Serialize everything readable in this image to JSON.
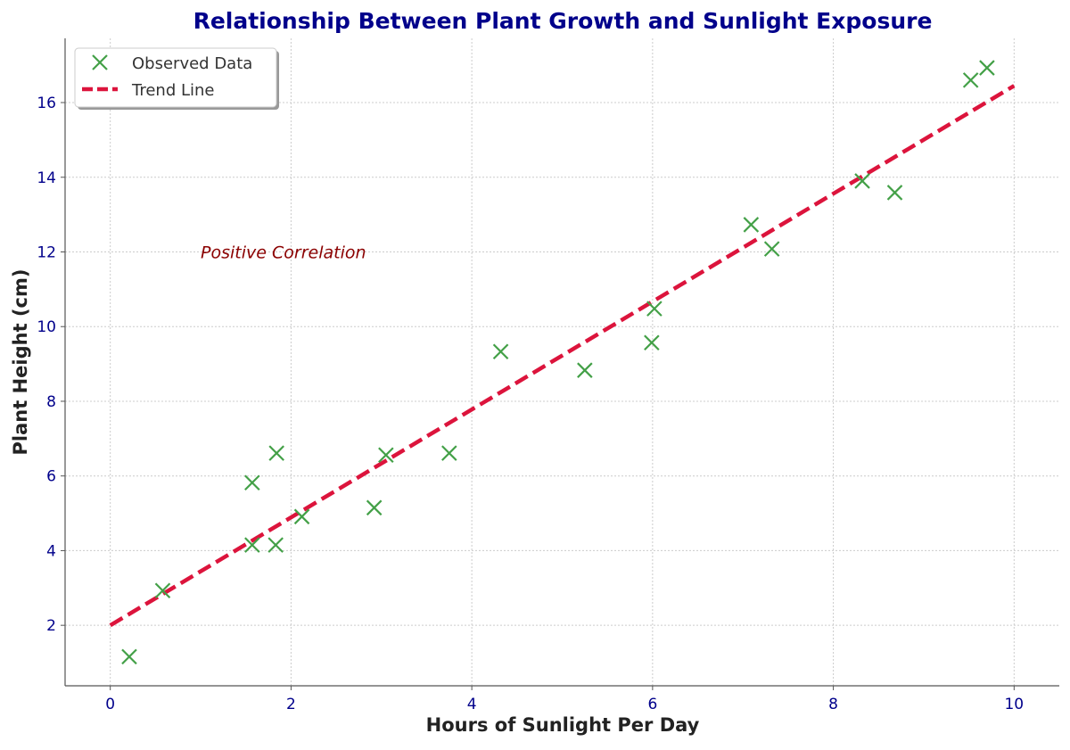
{
  "chart_data": {
    "type": "scatter",
    "title": "Relationship Between Plant Growth and Sunlight Exposure",
    "xlabel": "Hours of Sunlight Per Day",
    "ylabel": "Plant Height (cm)",
    "xlim": [
      -0.5,
      10.5
    ],
    "ylim": [
      0.38,
      17.72
    ],
    "xticks": [
      0,
      2,
      4,
      6,
      8,
      10
    ],
    "yticks": [
      2,
      4,
      6,
      8,
      10,
      12,
      14,
      16
    ],
    "grid": true,
    "legend_position": "top-left",
    "series": [
      {
        "name": "Observed Data",
        "marker": "x",
        "color": "#43a047",
        "x": [
          0.21,
          0.58,
          1.57,
          1.57,
          1.84,
          1.83,
          2.12,
          2.92,
          3.05,
          3.75,
          4.32,
          5.25,
          5.99,
          6.02,
          7.09,
          7.32,
          8.32,
          8.68,
          9.52,
          9.7
        ],
        "y": [
          1.16,
          2.93,
          5.82,
          4.15,
          6.61,
          4.15,
          4.91,
          5.15,
          6.56,
          6.61,
          9.33,
          8.83,
          9.57,
          10.48,
          12.73,
          12.08,
          13.9,
          13.59,
          16.6,
          16.93
        ]
      },
      {
        "name": "Trend Line",
        "type": "line",
        "style": "dashed",
        "color": "#dc143c",
        "x": [
          0,
          10
        ],
        "y": [
          2.0,
          16.45
        ]
      }
    ],
    "annotations": [
      {
        "text": "Positive Correlation",
        "x": 1.0,
        "y": 12.0,
        "color": "#8b0000"
      }
    ],
    "title_color": "#00008b",
    "tick_color": "#00008b"
  }
}
